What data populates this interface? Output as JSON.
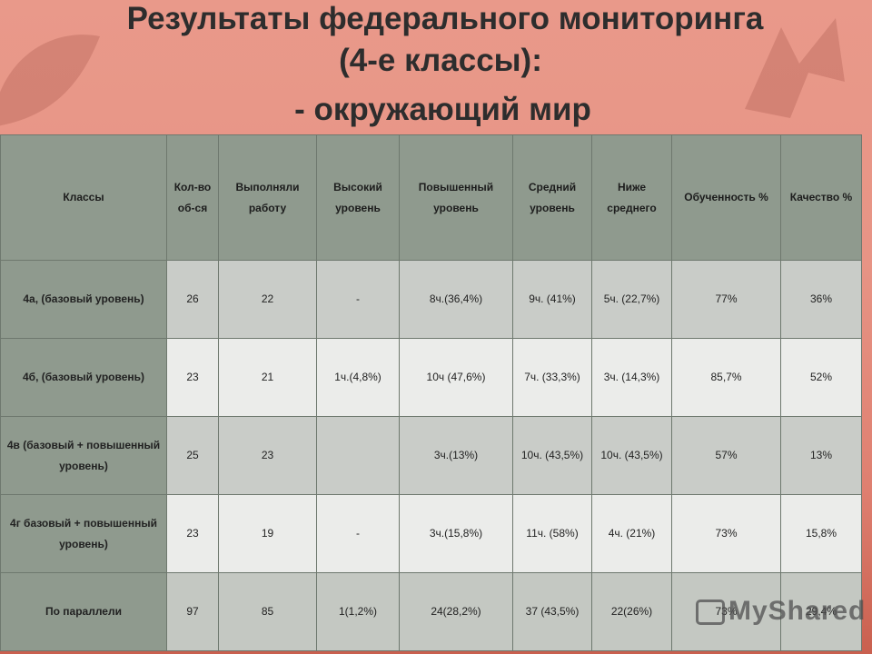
{
  "slide": {
    "title_line1": "Результаты федерального мониторинга",
    "title_line2": "(4-е классы):",
    "title_line3": "- окружающий мир"
  },
  "table": {
    "headers": [
      "Классы",
      "Кол-во об-ся",
      "Выполняли работу",
      "Высокий уровень",
      "Повышенный уровень",
      "Средний уровень",
      "Ниже среднего",
      "Обученность %",
      "Качество %"
    ],
    "rows": [
      [
        "4а, (базовый уровень)",
        "26",
        "22",
        "-",
        "8ч.(36,4%)",
        "9ч. (41%)",
        "5ч. (22,7%)",
        "77%",
        "36%"
      ],
      [
        "4б, (базовый уровень)",
        "23",
        "21",
        "1ч.(4,8%)",
        "10ч (47,6%)",
        "7ч. (33,3%)",
        "3ч. (14,3%)",
        "85,7%",
        "52%"
      ],
      [
        "4в (базовый + повышенный уровень)",
        "25",
        "23",
        "",
        "3ч.(13%)",
        "10ч. (43,5%)",
        "10ч. (43,5%)",
        "57%",
        "13%"
      ],
      [
        "4г базовый + повышенный уровень)",
        "23",
        "19",
        "-",
        "3ч.(15,8%)",
        "11ч. (58%)",
        "4ч. (21%)",
        "73%",
        "15,8%"
      ],
      [
        "По параллели",
        "97",
        "85",
        "1(1,2%)",
        "24(28,2%)",
        "37 (43,5%)",
        "22(26%)",
        "73%",
        "29,4%"
      ]
    ]
  },
  "watermark": {
    "text": "MyShared",
    "icon": "myshared-logo-icon"
  }
}
